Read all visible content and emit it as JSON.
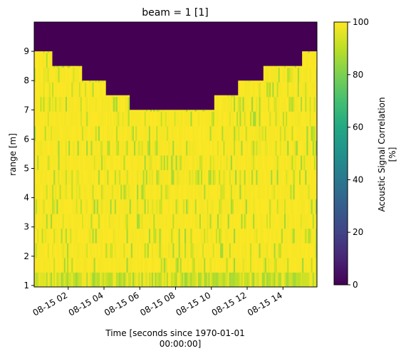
{
  "chart_data": {
    "type": "heatmap",
    "title": "beam = 1 [1]",
    "xlabel": "Time [seconds since 1970-01-01",
    "xlabel_line2": "00:00:00]",
    "ylabel": "range [m]",
    "colorbar_label": "Acoustic Signal Correlation",
    "colorbar_label_line2": "[%]",
    "colormap": "viridis",
    "x_tick_labels": [
      "08-15 02",
      "08-15 04",
      "08-15 06",
      "08-15 08",
      "08-15 10",
      "08-15 12",
      "08-15 14"
    ],
    "x_tick_hours": [
      2,
      4,
      6,
      8,
      10,
      12,
      14
    ],
    "xlim_hours": [
      0.1,
      15.9
    ],
    "y_ticks": [
      1,
      2,
      3,
      4,
      5,
      6,
      7,
      8,
      9
    ],
    "ylim": [
      0.95,
      10.0
    ],
    "colorbar_ticks": [
      0,
      20,
      40,
      60,
      80,
      100
    ],
    "clim": [
      0,
      100
    ],
    "grid": false,
    "invalid_region_value": 0,
    "valid_data_value_range": [
      85,
      100
    ],
    "valid_range_top_profile": [
      {
        "from_hour": 0.1,
        "to_hour": 1.1,
        "max_range_m": 9.0
      },
      {
        "from_hour": 1.1,
        "to_hour": 2.8,
        "max_range_m": 8.5
      },
      {
        "from_hour": 2.8,
        "to_hour": 4.1,
        "max_range_m": 8.0
      },
      {
        "from_hour": 4.1,
        "to_hour": 5.4,
        "max_range_m": 7.5
      },
      {
        "from_hour": 5.4,
        "to_hour": 10.2,
        "max_range_m": 7.0
      },
      {
        "from_hour": 10.2,
        "to_hour": 11.5,
        "max_range_m": 7.5
      },
      {
        "from_hour": 11.5,
        "to_hour": 12.9,
        "max_range_m": 8.0
      },
      {
        "from_hour": 12.9,
        "to_hour": 15.1,
        "max_range_m": 8.5
      },
      {
        "from_hour": 15.1,
        "to_hour": 15.9,
        "max_range_m": 9.0
      }
    ]
  }
}
